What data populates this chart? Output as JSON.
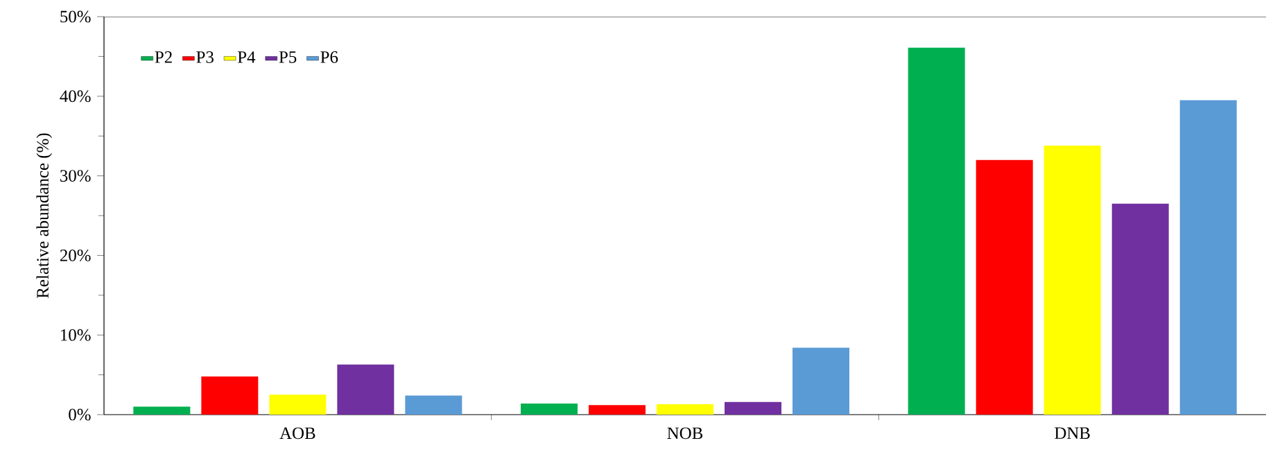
{
  "chart_data": {
    "type": "bar",
    "ylabel": "Relative abundance (%)",
    "categories": [
      "AOB",
      "NOB",
      "DNB"
    ],
    "series": [
      {
        "name": "P2",
        "color": "#00b050",
        "values": [
          1.0,
          1.4,
          46.1
        ]
      },
      {
        "name": "P3",
        "color": "#ff0000",
        "values": [
          4.8,
          1.2,
          32.0
        ]
      },
      {
        "name": "P4",
        "color": "#ffff00",
        "values": [
          2.5,
          1.3,
          33.8
        ]
      },
      {
        "name": "P5",
        "color": "#7030a0",
        "values": [
          6.3,
          1.6,
          26.5
        ]
      },
      {
        "name": "P6",
        "color": "#5b9bd5",
        "values": [
          2.4,
          8.4,
          39.5
        ]
      }
    ],
    "ylim": [
      0,
      50
    ],
    "yticks": [
      {
        "value": 0,
        "label": "0%"
      },
      {
        "value": 10,
        "label": "10%"
      },
      {
        "value": 20,
        "label": "20%"
      },
      {
        "value": 30,
        "label": "30%"
      },
      {
        "value": 40,
        "label": "40%"
      },
      {
        "value": 50,
        "label": "50%"
      }
    ],
    "legend": "top left",
    "grid": false
  }
}
